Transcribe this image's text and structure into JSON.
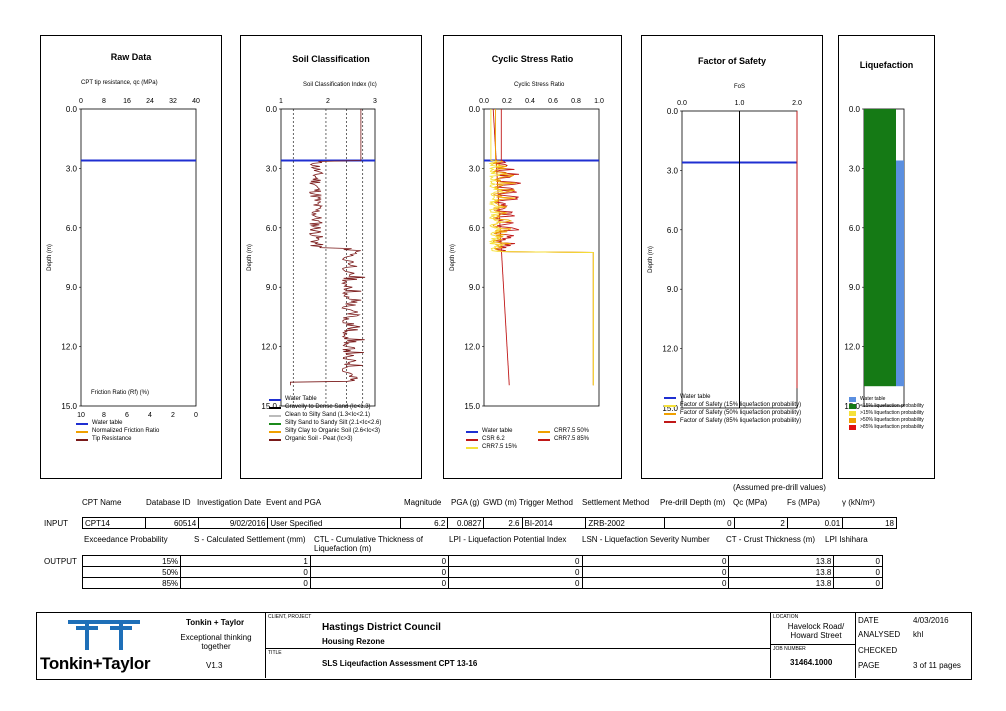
{
  "colors": {
    "water": "#1f2fd1",
    "tip": "#7a1a1a",
    "friction": "#f0a000",
    "green": "#1b8a1b",
    "grey": "#b8b8b8",
    "csr": "#c01818",
    "crr15": "#f5e13a",
    "crr50": "#f0a000",
    "crr85": "#c01818",
    "lq_water": "#5b8fe0",
    "lq_green": "#157a15"
  },
  "panels": {
    "raw": {
      "title": "Raw Data",
      "top_label": "CPT tip resistance, qc (MPa)",
      "bottom_label": "Friction Ratio (Rf) (%)",
      "top_ticks": [
        "0",
        "8",
        "16",
        "24",
        "32",
        "40"
      ],
      "bottom_ticks": [
        "10",
        "8",
        "6",
        "4",
        "2",
        "0"
      ],
      "legend": [
        "Water table",
        "Normalized Friction Ratio",
        "Tip Resistance"
      ]
    },
    "soil": {
      "title": "Soil Classification",
      "top_label": "Soil Classification Index (Ic)",
      "top_ticks": [
        "1",
        "2",
        "3"
      ],
      "legend": [
        "Water Table",
        "Gravelly to Dense Sand (Ic<1.3)",
        "Clean to Silty Sand (1.3<Ic<2.1)",
        "Silty Sand to Sandy Silt (2.1<Ic<2.6)",
        "Silty Clay to Organic Soil (2.6<Ic<3)",
        "Organic Soil - Peat (Ic>3)"
      ]
    },
    "csr": {
      "title": "Cyclic Stress Ratio",
      "top_label": "Cyclic Stress Ratio",
      "top_ticks": [
        "0.0",
        "0.2",
        "0.4",
        "0.6",
        "0.8",
        "1.0"
      ],
      "legend": [
        "Water table",
        "CSR 6.2",
        "CRR7.5 15%",
        "CRR7.5 50%",
        "CRR7.5 85%"
      ]
    },
    "fos": {
      "title": "Factor of Safety",
      "top_label": "FoS",
      "top_ticks": [
        "0.0",
        "1.0",
        "2.0"
      ],
      "legend": [
        "Water table",
        "Factor of Safety (15% liquefaction probability)",
        "Factor of Safety (50% liquefaction probability)",
        "Factor of Safety (85% liquefaction probability)"
      ]
    },
    "liq": {
      "title": "Liquefaction",
      "legend": [
        "Water table",
        "<15% liquefaction probability",
        ">15% liquefaction probability",
        ">50% liquefaction probability",
        ">85% liquefaction probability"
      ]
    }
  },
  "depth_label": "Depth (m)",
  "depth_ticks": [
    "0.0",
    "3.0",
    "6.0",
    "9.0",
    "12.0",
    "15.0"
  ],
  "chart_data": {
    "type": "line",
    "water_table_depth": 2.6,
    "depth_range": [
      0,
      15
    ],
    "liquefaction_bars": [
      {
        "class": "<15%",
        "from": 0,
        "to": 14
      },
      {
        "class": "water table",
        "from": 2.6,
        "to": 14
      }
    ]
  },
  "summary": {
    "assumed": "(Assumed pre-drill values)",
    "headers": [
      "CPT Name",
      "Database ID",
      "Investigation Date",
      "Event and PGA",
      "Magnitude",
      "PGA (g)",
      "GWD (m)",
      "Trigger Method",
      "Settlement Method",
      "Pre-drill Depth (m)",
      "Qc (MPa)",
      "Fs (MPa)",
      "γ (kN/m³)"
    ],
    "input_label": "INPUT",
    "input": [
      "CPT14",
      "60514",
      "9/02/2016",
      "User Specified",
      "6.2",
      "0.0827",
      "2.6",
      "BI-2014",
      "ZRB-2002",
      "0",
      "2",
      "0.01",
      "18"
    ],
    "out_headers": [
      "Exceedance Probability",
      "S - Calculated Settlement (mm)",
      "CTL - Cumulative Thickness of Liquefaction (m)",
      "LPI - Liquefaction Potential Index",
      "LSN - Liquefaction Severity Number",
      "CT - Crust Thickness (m)",
      "LPI Ishihara"
    ],
    "output_label": "OUTPUT",
    "output": [
      [
        "15%",
        "1",
        "0",
        "0",
        "0",
        "13.8",
        "0"
      ],
      [
        "50%",
        "0",
        "0",
        "0",
        "0",
        "13.8",
        "0"
      ],
      [
        "85%",
        "0",
        "0",
        "0",
        "0",
        "13.8",
        "0"
      ]
    ]
  },
  "titleblock": {
    "company": "Tonkin + Taylor",
    "tagline": "Exceptional thinking together",
    "version": "V1.3",
    "logo": "Tonkin+Taylor",
    "client_label": "CLIENT, PROJECT",
    "client": "Hastings District Council",
    "project": "Housing Rezone",
    "title_label": "TITLE",
    "title": "SLS Liqeufaction Assessment CPT 13-16",
    "location_label": "LOCATION",
    "location": "Havelock Road/ Howard Street",
    "job_label": "JOB NUMBER",
    "job": "31464.1000",
    "date_label": "DATE",
    "date": "4/03/2016",
    "analysed_label": "ANALYSED",
    "analysed": "khl",
    "checked_label": "CHECKED",
    "checked": "",
    "page_label": "PAGE",
    "page": "3 of 11 pages"
  }
}
